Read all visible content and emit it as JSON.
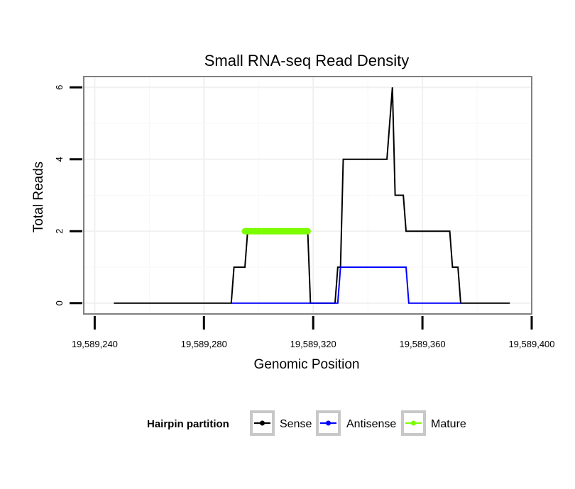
{
  "chart_data": {
    "type": "line",
    "title": "Small RNA-seq Read Density",
    "xlabel": "Genomic Position",
    "ylabel": "Total Reads",
    "xlim": [
      19589236,
      19589400
    ],
    "ylim": [
      -0.3,
      6.3
    ],
    "x_ticks": [
      19589240,
      19589280,
      19589320,
      19589360,
      19589400
    ],
    "x_tick_labels": [
      "19,589,240",
      "19,589,280",
      "19,589,320",
      "19,589,360",
      "19,589,400"
    ],
    "y_ticks": [
      0,
      2,
      4,
      6
    ],
    "y_tick_labels": [
      "0",
      "2",
      "4",
      "6"
    ],
    "grid": true,
    "legend": {
      "title": "Hairpin partition",
      "position": "bottom",
      "entries": [
        "Sense",
        "Antisense",
        "Mature"
      ]
    },
    "series": [
      {
        "name": "Sense",
        "color": "#000000",
        "x": [
          19589247,
          19589290,
          19589291,
          19589295,
          19589296,
          19589318,
          19589319,
          19589328,
          19589329,
          19589330,
          19589331,
          19589347,
          19589349,
          19589350,
          19589353,
          19589354,
          19589370,
          19589371,
          19589373,
          19589374,
          19589392
        ],
        "y": [
          0,
          0,
          1,
          1,
          2,
          2,
          0,
          0,
          1,
          1,
          4,
          4,
          6,
          3,
          3,
          2,
          2,
          1,
          1,
          0,
          0
        ]
      },
      {
        "name": "Antisense",
        "color": "#0000ff",
        "x": [
          19589290,
          19589329,
          19589330,
          19589354,
          19589355,
          19589374
        ],
        "y": [
          0,
          0,
          1,
          1,
          0,
          0
        ]
      },
      {
        "name": "Mature",
        "color": "#7cfc00",
        "x": [
          19589295,
          19589318
        ],
        "y": [
          2,
          2
        ]
      }
    ]
  }
}
